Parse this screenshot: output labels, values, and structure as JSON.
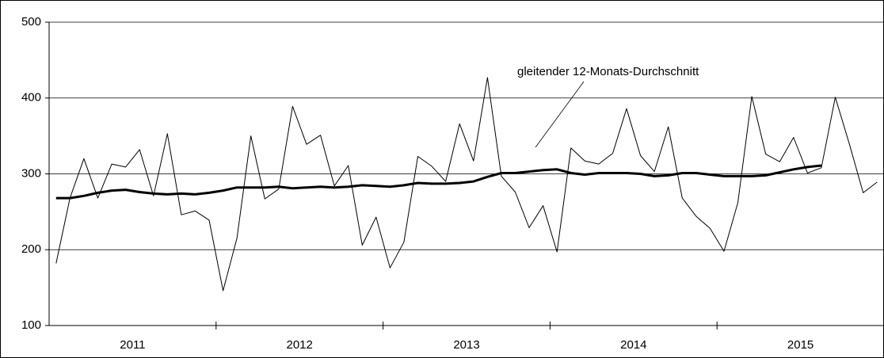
{
  "chart_data": {
    "type": "line",
    "categories": [
      "2011",
      null,
      null,
      null,
      null,
      null,
      null,
      null,
      null,
      null,
      null,
      null,
      "2012",
      null,
      null,
      null,
      null,
      null,
      null,
      null,
      null,
      null,
      null,
      null,
      "2013",
      null,
      null,
      null,
      null,
      null,
      null,
      null,
      null,
      null,
      null,
      null,
      "2014",
      null,
      null,
      null,
      null,
      null,
      null,
      null,
      null,
      null,
      null,
      null,
      "2015",
      null,
      null,
      null,
      null,
      null,
      null,
      null,
      null,
      null,
      null,
      null
    ],
    "series": [
      {
        "color": "#000000",
        "values": [
          182,
          268,
          320,
          268,
          313,
          309,
          332,
          271,
          353,
          246,
          251,
          239,
          146,
          215,
          350,
          267,
          280,
          389,
          339,
          351,
          284,
          311,
          206,
          243,
          176,
          210,
          323,
          310,
          290,
          366,
          317,
          427,
          297,
          276,
          229,
          258,
          197,
          334,
          317,
          313,
          327,
          386,
          324,
          303,
          362,
          268,
          244,
          228,
          198,
          262,
          402,
          326,
          316,
          348,
          301,
          308,
          401,
          340,
          275,
          289
        ]
      },
      {
        "name": "gleitender 12-Monats-Durchschnitt",
        "color": "#000000",
        "values": [
          268,
          268,
          271,
          275,
          278,
          279,
          276,
          274,
          273,
          274,
          273,
          275,
          278,
          282,
          282,
          282,
          283,
          281,
          282,
          283,
          282,
          283,
          285,
          284,
          283,
          285,
          288,
          287,
          287,
          288,
          290,
          296,
          301,
          301,
          303,
          305,
          306,
          301,
          299,
          301,
          301,
          301,
          300,
          297,
          298,
          301,
          301,
          299,
          297,
          297,
          297,
          298,
          302,
          306,
          309,
          311,
          null,
          null,
          null,
          null
        ]
      }
    ],
    "ylim": [
      100,
      500
    ],
    "yticks": [
      100,
      200,
      300,
      400,
      500
    ],
    "grid": true
  }
}
